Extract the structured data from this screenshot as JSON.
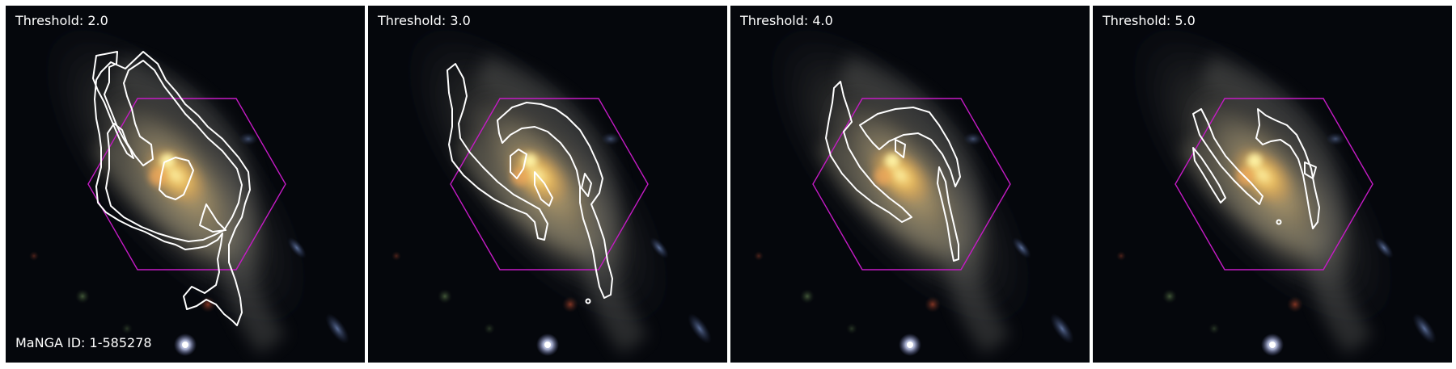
{
  "figure": {
    "manga_id_label": "MaNGA ID: 1-585278",
    "colors": {
      "contour": "#ffffff",
      "hexagon": "#c51bc5",
      "background": "#05070c"
    },
    "panels": [
      {
        "threshold_label": "Threshold: 2.0"
      },
      {
        "threshold_label": "Threshold: 3.0"
      },
      {
        "threshold_label": "Threshold: 4.0"
      },
      {
        "threshold_label": "Threshold: 5.0"
      }
    ]
  }
}
